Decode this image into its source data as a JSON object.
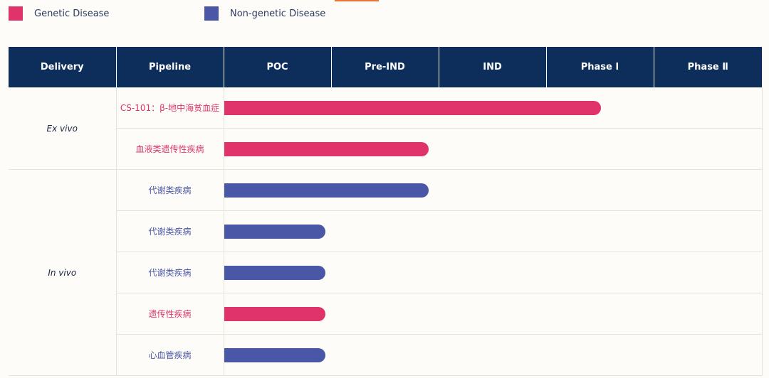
{
  "colors": {
    "genetic": "#e0336b",
    "non_genetic": "#4a56a6",
    "header_bg": "#0d2e5b"
  },
  "legend": [
    {
      "label": "Genetic Disease",
      "color": "#e0336b"
    },
    {
      "label": "Non-genetic Disease",
      "color": "#4a56a6"
    }
  ],
  "headers": {
    "delivery": "Delivery",
    "pipeline": "Pipeline",
    "stages": [
      "POC",
      "Pre-IND",
      "IND",
      "Phase Ⅰ",
      "Phase Ⅱ"
    ]
  },
  "groups": [
    {
      "label": "Ex vivo",
      "rows": [
        0,
        1
      ]
    },
    {
      "label": "In vivo",
      "rows": [
        2,
        3,
        4,
        5,
        6
      ]
    }
  ],
  "chart_data": {
    "type": "bar",
    "orientation": "horizontal",
    "stages": [
      "POC",
      "Pre-IND",
      "IND",
      "Phase Ⅰ",
      "Phase Ⅱ"
    ],
    "rows": [
      {
        "label": "CS-101：β-地中海贫血症",
        "delivery": "Ex vivo",
        "category": "genetic",
        "progress": 3.5
      },
      {
        "label": "血液类遗传性疾病",
        "delivery": "Ex vivo",
        "category": "genetic",
        "progress": 1.9
      },
      {
        "label": "代谢类疾病",
        "delivery": "In vivo",
        "category": "non_genetic",
        "progress": 1.9
      },
      {
        "label": "代谢类疾病",
        "delivery": "In vivo",
        "category": "non_genetic",
        "progress": 0.94
      },
      {
        "label": "代谢类疾病",
        "delivery": "In vivo",
        "category": "non_genetic",
        "progress": 0.94
      },
      {
        "label": "遗传性疾病",
        "delivery": "In vivo",
        "category": "genetic",
        "progress": 0.94
      },
      {
        "label": "心血管疾病",
        "delivery": "In vivo",
        "category": "non_genetic",
        "progress": 0.94
      }
    ]
  }
}
